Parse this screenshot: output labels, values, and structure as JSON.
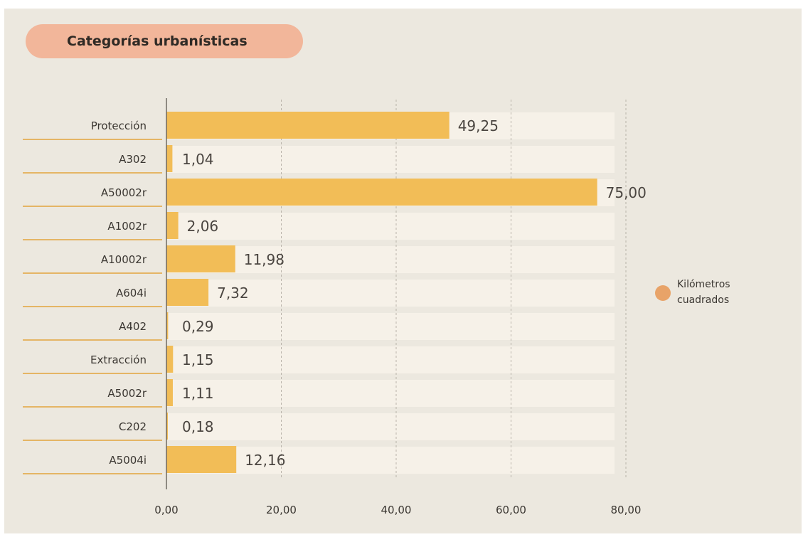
{
  "chart_data": {
    "type": "bar",
    "orientation": "horizontal",
    "title": "Categorías urbanísticas",
    "categories": [
      "Protección",
      "A302",
      "A50002r",
      "A1002r",
      "A10002r",
      "A604i",
      "A402",
      "Extracción",
      "A5002r",
      "C202",
      "A5004i"
    ],
    "series": [
      {
        "name": "Kilómetros cuadrados",
        "values": [
          49.25,
          1.04,
          75.0,
          2.06,
          11.98,
          7.32,
          0.29,
          1.15,
          1.11,
          0.18,
          12.16
        ],
        "labels": [
          "49,25",
          "1,04",
          "75,00",
          "2,06",
          "11,98",
          "7,32",
          "0,29",
          "1,15",
          "1,11",
          "0,18",
          "12,16"
        ]
      }
    ],
    "xlim": [
      0,
      80
    ],
    "xticks": [
      0,
      20,
      40,
      60,
      80
    ],
    "xtick_labels": [
      "0,00",
      "20,00",
      "40,00",
      "60,00",
      "80,00"
    ],
    "grid": "vertical-dashed",
    "legend": "right",
    "colors": {
      "bar": "#f2bd57",
      "track": "#f6f1e8",
      "legend_marker": "#e8a368",
      "underline": "#e5b565",
      "gridline": "#b9b3aa",
      "title_pill": "#f2b69a",
      "panel": "#ece8df"
    }
  }
}
